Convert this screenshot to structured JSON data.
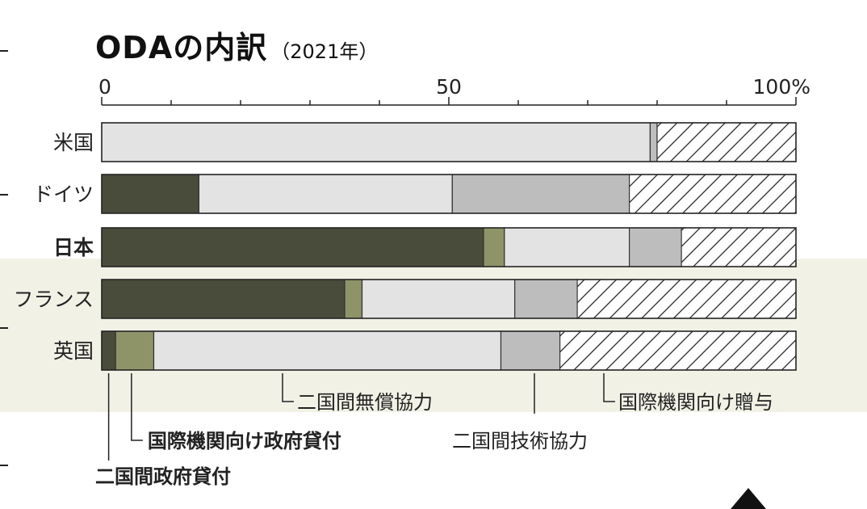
{
  "chart_data": {
    "type": "bar",
    "orientation": "horizontal",
    "stacked": true,
    "percent": true,
    "title": "ODAの内訳",
    "subtitle": "（2021年）",
    "xlim": [
      0,
      100
    ],
    "x_ticks": [
      0,
      50,
      100
    ],
    "x_tick_labels": [
      "0",
      "50",
      "100%"
    ],
    "minor_tick_step": 10,
    "categories": [
      "米国",
      "ドイツ",
      "日本",
      "フランス",
      "英国"
    ],
    "emphasized_category": "日本",
    "series": [
      {
        "name": "二国間政府貸付",
        "color": "#4a4c3b",
        "pattern": "solid",
        "values": [
          0,
          14,
          55,
          35,
          2
        ]
      },
      {
        "name": "国際機関向け政府貸付",
        "color": "#8e9468",
        "pattern": "solid",
        "values": [
          0,
          0,
          3,
          2.5,
          5.5
        ]
      },
      {
        "name": "二国間無償協力",
        "color": "#e3e3e3",
        "pattern": "solid",
        "values": [
          79,
          36.5,
          18,
          22,
          50
        ]
      },
      {
        "name": "二国間技術協力",
        "color": "#bdbdbd",
        "pattern": "solid",
        "values": [
          1,
          25.5,
          7.5,
          9,
          8.5
        ]
      },
      {
        "name": "国際機関向け贈与",
        "color": "#ffffff",
        "pattern": "hatch",
        "values": [
          20,
          24,
          16.5,
          31.5,
          34
        ]
      }
    ]
  }
}
